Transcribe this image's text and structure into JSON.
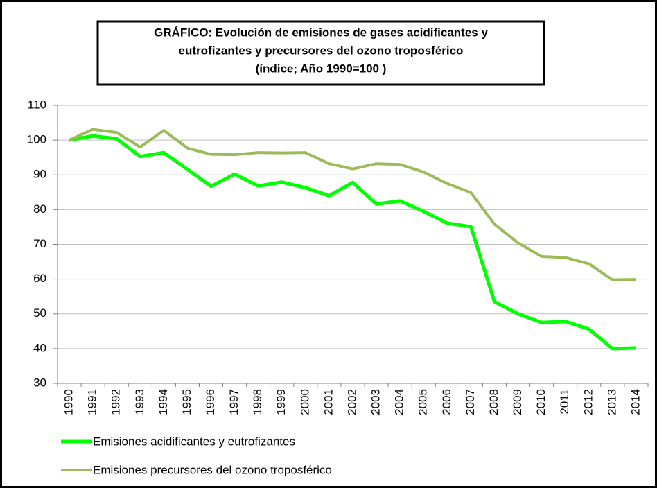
{
  "chart_data": {
    "type": "line",
    "title": [
      "GRÁFICO: Evolución de emisiones de gases acidificantes y",
      "eutrofizantes y precursores del ozono troposférico",
      "(índice; Año 1990=100 )"
    ],
    "categories": [
      "1990",
      "1991",
      "1992",
      "1993",
      "1994",
      "1995",
      "1996",
      "1997",
      "1998",
      "1999",
      "2000",
      "2001",
      "2002",
      "2003",
      "2004",
      "2005",
      "2006",
      "2007",
      "2008",
      "2009",
      "2010",
      "2011",
      "2012",
      "2013",
      "2014"
    ],
    "series": [
      {
        "name": "Emisiones acidificantes y eutrofizantes",
        "color": "#00ff00",
        "values": [
          100,
          101.2,
          100.4,
          95.3,
          96.4,
          91.6,
          86.7,
          90.2,
          86.8,
          87.9,
          86.3,
          84.0,
          87.8,
          81.6,
          82.5,
          79.5,
          76.1,
          75.1,
          53.5,
          50.0,
          47.5,
          47.8,
          45.6,
          40.0,
          40.2
        ]
      },
      {
        "name": "Emisiones precursores del ozono troposférico",
        "color": "#9bbb59",
        "values": [
          100,
          103.1,
          102.2,
          98.0,
          102.8,
          97.7,
          95.9,
          95.8,
          96.4,
          96.3,
          96.4,
          93.2,
          91.7,
          93.2,
          93.0,
          90.8,
          87.5,
          84.9,
          75.8,
          70.4,
          66.5,
          66.2,
          64.4,
          59.8,
          59.9
        ]
      }
    ],
    "ylim": [
      30,
      110
    ],
    "yticks": [
      30,
      40,
      50,
      60,
      70,
      80,
      90,
      100,
      110
    ],
    "grid": true,
    "legend": "bottom"
  }
}
